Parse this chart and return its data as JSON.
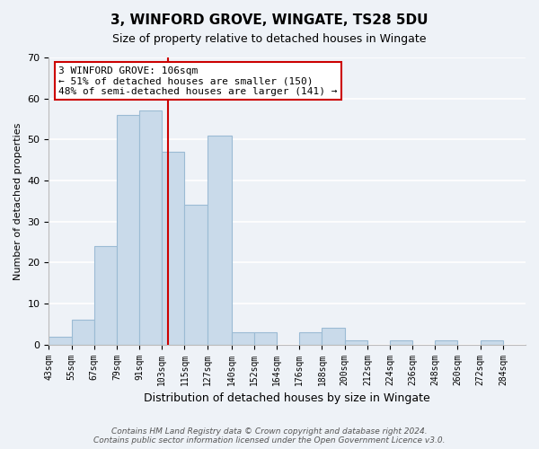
{
  "title": "3, WINFORD GROVE, WINGATE, TS28 5DU",
  "subtitle": "Size of property relative to detached houses in Wingate",
  "xlabel": "Distribution of detached houses by size in Wingate",
  "ylabel": "Number of detached properties",
  "bar_left_edges": [
    43,
    55,
    67,
    79,
    91,
    103,
    115,
    127,
    140,
    152,
    164,
    176,
    188,
    200,
    212,
    224,
    236,
    248,
    260,
    272
  ],
  "bar_widths": [
    12,
    12,
    12,
    12,
    12,
    12,
    12,
    13,
    12,
    12,
    12,
    12,
    12,
    12,
    12,
    12,
    12,
    12,
    12,
    12
  ],
  "bar_heights": [
    2,
    6,
    24,
    56,
    57,
    47,
    34,
    51,
    3,
    3,
    0,
    3,
    4,
    1,
    0,
    1,
    0,
    1,
    0,
    1
  ],
  "tick_labels": [
    "43sqm",
    "55sqm",
    "67sqm",
    "79sqm",
    "91sqm",
    "103sqm",
    "115sqm",
    "127sqm",
    "140sqm",
    "152sqm",
    "164sqm",
    "176sqm",
    "188sqm",
    "200sqm",
    "212sqm",
    "224sqm",
    "236sqm",
    "248sqm",
    "260sqm",
    "272sqm",
    "284sqm"
  ],
  "tick_positions": [
    43,
    55,
    67,
    79,
    91,
    103,
    115,
    127,
    140,
    152,
    164,
    176,
    188,
    200,
    212,
    224,
    236,
    248,
    260,
    272,
    284
  ],
  "bar_color": "#c9daea",
  "bar_edge_color": "#9bbbd4",
  "marker_x": 106,
  "marker_color": "#cc0000",
  "ylim": [
    0,
    70
  ],
  "xlim": [
    43,
    296
  ],
  "annotation_line1": "3 WINFORD GROVE: 106sqm",
  "annotation_line2": "← 51% of detached houses are smaller (150)",
  "annotation_line3": "48% of semi-detached houses are larger (141) →",
  "annotation_box_color": "#ffffff",
  "annotation_box_edge": "#cc0000",
  "footnote1": "Contains HM Land Registry data © Crown copyright and database right 2024.",
  "footnote2": "Contains public sector information licensed under the Open Government Licence v3.0.",
  "background_color": "#eef2f7",
  "grid_color": "#ffffff",
  "title_fontsize": 11,
  "subtitle_fontsize": 9,
  "ylabel_fontsize": 8,
  "xlabel_fontsize": 9,
  "tick_fontsize": 7,
  "annotation_fontsize": 8,
  "footnote_fontsize": 6.5
}
